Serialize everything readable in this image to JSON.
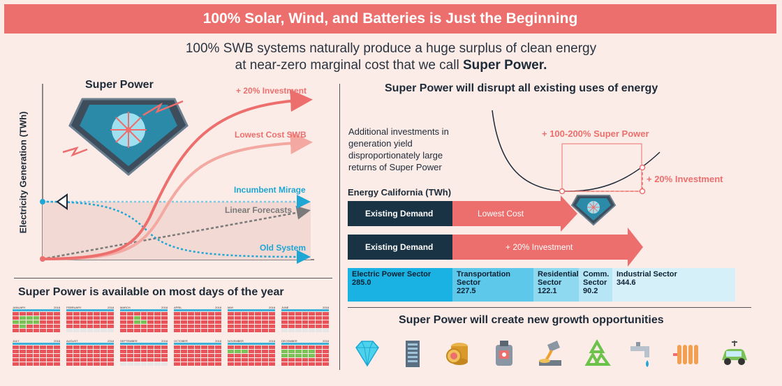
{
  "banner": {
    "title": "100% Solar, Wind, and Batteries is Just the Beginning"
  },
  "subtitle": {
    "line1": "100% SWB systems naturally produce a huge surplus of clean energy",
    "line2_prefix": "at near-zero marginal cost that we call ",
    "line2_bold": "Super Power."
  },
  "left_chart": {
    "title": "Super Power",
    "ylabel": "Electricity Generation (TWh)",
    "labels": {
      "investment": "+ 20% Investment",
      "lowest_cost": "Lowest Cost SWB",
      "mirage": "Incumbent Mirage",
      "linear": "Linear Forecasts",
      "old": "Old System"
    },
    "colors": {
      "red": "#ec6f6d",
      "pink": "#f4a8a2",
      "blue": "#1ea6d4",
      "gray": "#7a7a7a"
    }
  },
  "calendar_section": {
    "title": "Super Power is available on most days of the year",
    "months": [
      {
        "name": "JANUARY",
        "year": "2018"
      },
      {
        "name": "FEBRUARY",
        "year": "2018"
      },
      {
        "name": "MARCH",
        "year": "2018"
      },
      {
        "name": "APRIL",
        "year": "2018"
      },
      {
        "name": "MAY",
        "year": "2018"
      },
      {
        "name": "JUNE",
        "year": "2018"
      },
      {
        "name": "JULY",
        "year": "2018"
      },
      {
        "name": "AUGUST",
        "year": "2018"
      },
      {
        "name": "SEPTEMBER",
        "year": "2018"
      },
      {
        "name": "OCTOBER",
        "year": "2018"
      },
      {
        "name": "NOVEMBER",
        "year": "2018"
      },
      {
        "name": "DECEMBER",
        "year": "2018"
      }
    ]
  },
  "right_top": {
    "title": "Super Power will disrupt all existing uses of energy",
    "note": "Additional investments in generation yield disproportionately large returns of Super Power",
    "super_power_label": "+ 100-200% Super Power",
    "investment_label": "+ 20% Investment",
    "energy_title": "Energy California (TWh)",
    "bar1": {
      "left": "Existing Demand",
      "right": "Lowest Cost"
    },
    "bar2": {
      "left": "Existing Demand",
      "right": "+ 20% Investment"
    },
    "sectors": [
      {
        "name": "Electric Power Sector",
        "value": "285.0"
      },
      {
        "name": "Transportation Sector",
        "value": "227.5"
      },
      {
        "name": "Residential Sector",
        "value": "122.1"
      },
      {
        "name": "Comm. Sector",
        "value": "90.2"
      },
      {
        "name": "Industrial Sector",
        "value": "344.6"
      }
    ]
  },
  "right_bottom": {
    "title": "Super Power will create new growth opportunities",
    "icons": [
      "diamond-icon",
      "server-icon",
      "coins-icon",
      "reactor-icon",
      "smelting-icon",
      "recycle-icon",
      "water-tap-icon",
      "heater-icon",
      "electric-car-icon"
    ]
  }
}
